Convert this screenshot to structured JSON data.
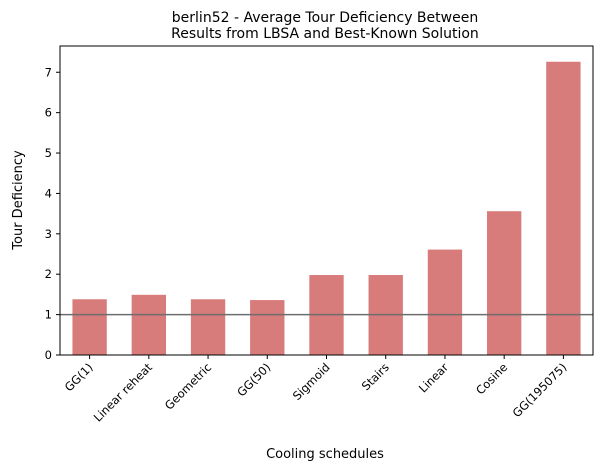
{
  "chart_data": {
    "type": "bar",
    "title_lines": [
      "berlin52 - Average Tour Deficiency Between",
      "Results from LBSA and Best-Known Solution"
    ],
    "xlabel": "Cooling schedules",
    "ylabel": "Tour Deficiency",
    "categories": [
      "GG(1)",
      "Linear reheat",
      "Geometric",
      "GG(50)",
      "Sigmoid",
      "Stairs",
      "Linear",
      "Cosine",
      "GG(195075)"
    ],
    "values": [
      1.38,
      1.49,
      1.38,
      1.36,
      1.98,
      1.98,
      2.61,
      3.56,
      7.26
    ],
    "ylim": [
      0,
      7.65
    ],
    "yticks": [
      0,
      1,
      2,
      3,
      4,
      5,
      6,
      7
    ],
    "reference_line": 1,
    "bar_color": "#d77b7b",
    "reference_line_color": "#6e6e6e",
    "grid": false
  }
}
